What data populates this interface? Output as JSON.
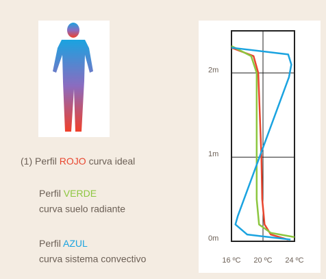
{
  "chart_data": {
    "type": "line",
    "series": [
      {
        "prefix": "(1) Perfil",
        "name": "ROJO",
        "description": "curva ideal",
        "color": "#e8452e",
        "x": [
          23.2,
          21,
          20.2,
          19.9,
          19.8,
          19.6,
          19.4,
          18.8,
          16
        ],
        "y": [
          0.02,
          0.08,
          0.2,
          0.5,
          1,
          1.5,
          2.0,
          2.2,
          2.3
        ]
      },
      {
        "prefix": "Perfil",
        "name": "VERDE",
        "description": "curva suelo radiante",
        "color": "#8cc63f",
        "x": [
          24,
          21,
          19.5,
          19.2,
          19.2,
          19.2,
          19.2,
          18.5,
          16
        ],
        "y": [
          0.05,
          0.1,
          0.2,
          0.5,
          1,
          1.5,
          2.0,
          2.2,
          2.32
        ]
      },
      {
        "prefix": "Perfil",
        "name": "AZUL",
        "description": "curva sistema convectivo",
        "color": "#1aa3e0",
        "x": [
          23.5,
          18,
          16.5,
          16.8,
          23.3,
          23.6,
          23.2,
          16
        ],
        "y": [
          0.02,
          0.08,
          0.2,
          0.3,
          1.95,
          2.1,
          2.22,
          2.3
        ]
      }
    ],
    "xlim": [
      16,
      24
    ],
    "xticks": [
      {
        "value": 16,
        "label": "16 ºC"
      },
      {
        "value": 20,
        "label": "20 ºC"
      },
      {
        "value": 24,
        "label": "24 ºC"
      }
    ],
    "ylim": [
      0,
      2.5
    ],
    "yticks": [
      {
        "value": 0,
        "label": "0m"
      },
      {
        "value": 1,
        "label": "1m"
      },
      {
        "value": 2,
        "label": "2m"
      }
    ],
    "grid": true
  }
}
